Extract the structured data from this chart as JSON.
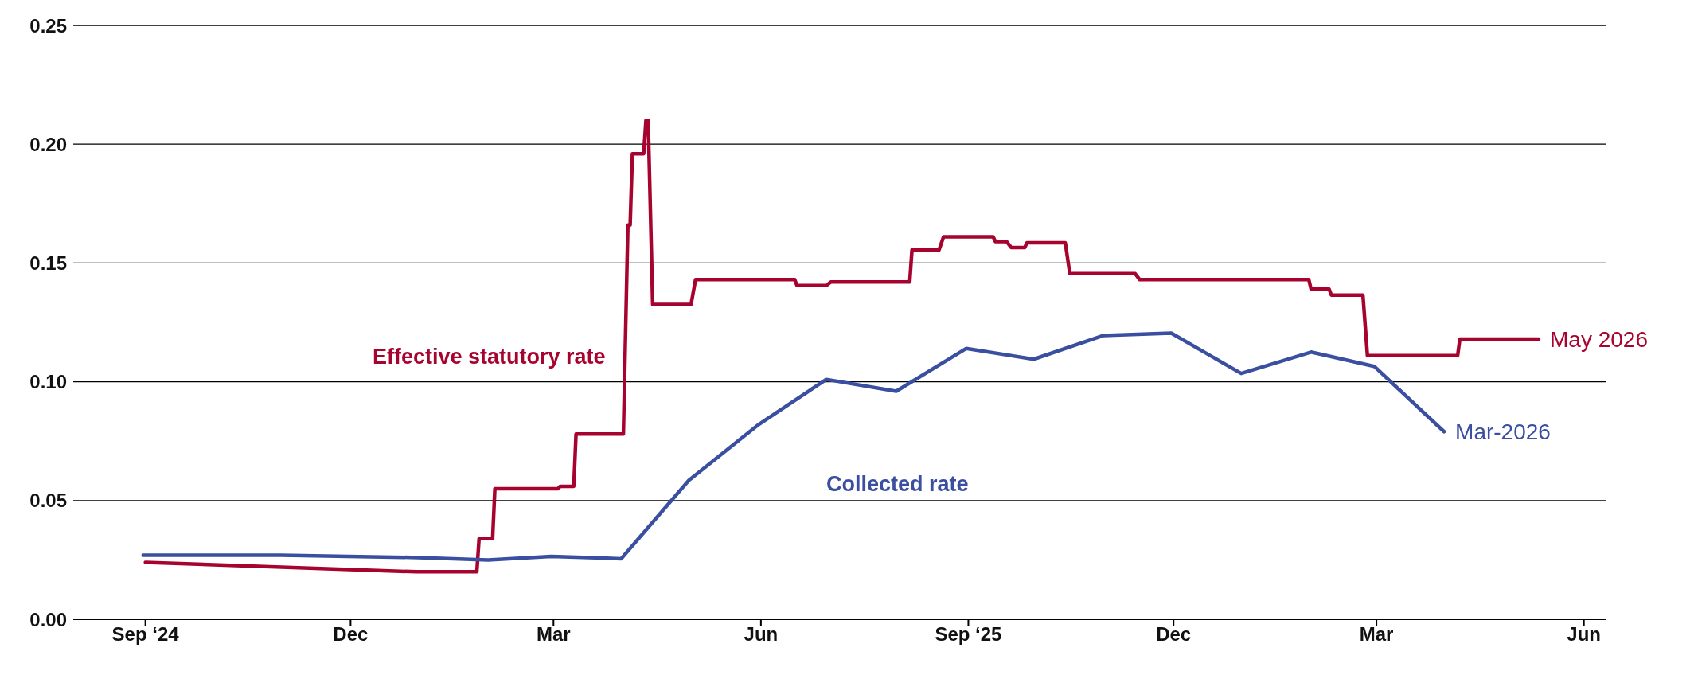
{
  "chart_data": {
    "type": "line",
    "xlim": [
      "2024-07-31",
      "2026-06-11"
    ],
    "xticks": [
      {
        "value": "2024-09-01",
        "label": "Sep ‘24"
      },
      {
        "value": "2024-12-01",
        "label": "Dec"
      },
      {
        "value": "2025-03-01",
        "label": "Mar"
      },
      {
        "value": "2025-06-01",
        "label": "Jun"
      },
      {
        "value": "2025-09-01",
        "label": "Sep ‘25"
      },
      {
        "value": "2025-12-01",
        "label": "Dec"
      },
      {
        "value": "2026-03-01",
        "label": "Mar"
      },
      {
        "value": "2026-06-01",
        "label": "Jun"
      }
    ],
    "ylim": [
      0,
      0.25
    ],
    "yticks": [
      {
        "value": 0,
        "label": "0.00"
      },
      {
        "value": 0.05,
        "label": "0.05"
      },
      {
        "value": 0.1,
        "label": "0.10"
      },
      {
        "value": 0.15,
        "label": "0.15"
      },
      {
        "value": 0.2,
        "label": "0.20"
      },
      {
        "value": 0.25,
        "label": "0.25"
      }
    ],
    "grid": "y",
    "marker": "none",
    "line_style": "solid",
    "series": [
      {
        "name": "Effective statutory rate",
        "color": "#a6032f",
        "x": [
          "2024-09-01",
          "2024-12-30",
          "2025-01-26",
          "2025-01-27",
          "2025-02-02",
          "2025-02-03",
          "2025-03-03",
          "2025-03-04",
          "2025-03-10",
          "2025-03-11",
          "2025-04-01",
          "2025-04-03",
          "2025-04-04",
          "2025-04-05",
          "2025-04-10",
          "2025-04-11",
          "2025-04-12",
          "2025-04-14",
          "2025-05-01",
          "2025-05-03",
          "2025-06-16",
          "2025-06-17",
          "2025-06-30",
          "2025-07-02",
          "2025-08-06",
          "2025-08-07",
          "2025-08-19",
          "2025-08-21",
          "2025-09-12",
          "2025-09-13",
          "2025-09-18",
          "2025-09-20",
          "2025-09-26",
          "2025-09-27",
          "2025-10-06",
          "2025-10-07",
          "2025-10-14",
          "2025-10-16",
          "2025-11-14",
          "2025-11-16",
          "2026-01-30",
          "2026-01-31",
          "2026-02-08",
          "2026-02-09",
          "2026-02-23",
          "2026-02-25",
          "2026-04-06",
          "2026-04-07",
          "2026-05-12"
        ],
        "values": [
          0.024,
          0.02,
          0.02,
          0.034,
          0.034,
          0.055,
          0.055,
          0.056,
          0.056,
          0.078,
          0.078,
          0.166,
          0.166,
          0.196,
          0.196,
          0.21,
          0.21,
          0.1325,
          0.1325,
          0.143,
          0.143,
          0.1405,
          0.1405,
          0.142,
          0.142,
          0.1555,
          0.1555,
          0.161,
          0.161,
          0.159,
          0.159,
          0.1565,
          0.1565,
          0.1585,
          0.1585,
          0.1585,
          0.1585,
          0.1455,
          0.1455,
          0.143,
          0.143,
          0.139,
          0.139,
          0.1365,
          0.1365,
          0.111,
          0.111,
          0.118,
          0.118
        ]
      },
      {
        "name": "Collected rate",
        "color": "#3a4fa0",
        "x": [
          "2024-08-31",
          "2024-09-30",
          "2024-10-31",
          "2024-11-30",
          "2024-12-31",
          "2025-01-31",
          "2025-02-28",
          "2025-03-31",
          "2025-04-30",
          "2025-05-31",
          "2025-06-30",
          "2025-07-31",
          "2025-08-31",
          "2025-09-30",
          "2025-10-31",
          "2025-11-30",
          "2025-12-31",
          "2026-01-31",
          "2026-02-28",
          "2026-03-31"
        ],
        "values": [
          0.027,
          0.027,
          0.027,
          0.0265,
          0.026,
          0.025,
          0.0265,
          0.0255,
          0.0585,
          0.082,
          0.101,
          0.096,
          0.114,
          0.1095,
          0.1195,
          0.1205,
          0.1035,
          0.1125,
          0.1065,
          0.079
        ]
      }
    ],
    "annotations": [
      {
        "text": "May 2026",
        "x": "2026-05-12",
        "y": 0.118
      },
      {
        "text": "Mar-2026",
        "x": "2026-03-31",
        "y": 0.079
      }
    ]
  }
}
